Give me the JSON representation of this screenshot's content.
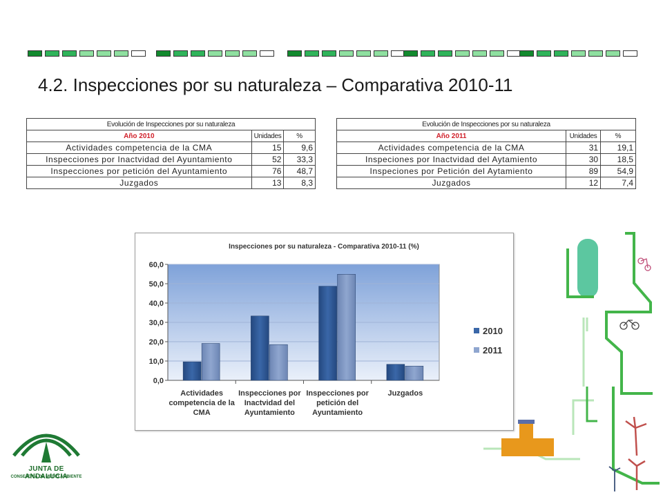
{
  "page": {
    "title": "4.2. Inspecciones por su naturaleza – Comparativa 2010-11"
  },
  "colors": {
    "bar_2010": "#3a67a8",
    "bar_2011": "#8fa6cf",
    "plot_bg_top": "#7fa2d9",
    "plot_bg_bottom": "#eaf0fa",
    "year_header": "#d0202a",
    "deco_dark": "#128a2e",
    "deco_mid": "#2fb45a",
    "deco_light": "#8fe0a0"
  },
  "table_2010": {
    "caption": "Evolución de Inspecciones por su naturaleza",
    "year": "Año 2010",
    "col_units": "Unidades",
    "col_pct": "%",
    "rows": [
      {
        "label": "Actividades competencia de la CMA",
        "units": "15",
        "pct": "9,6"
      },
      {
        "label": "Inspecciones por Inactvidad del Ayuntamiento",
        "units": "52",
        "pct": "33,3"
      },
      {
        "label": "Inspecciones por petición del Ayuntamiento",
        "units": "76",
        "pct": "48,7"
      },
      {
        "label": "Juzgados",
        "units": "13",
        "pct": "8,3"
      }
    ]
  },
  "table_2011": {
    "caption": "Evolución de Inspecciones por su naturaleza",
    "year": "Año 2011",
    "col_units": "Unidades",
    "col_pct": "%",
    "rows": [
      {
        "label": "Actividades competencia de la CMA",
        "units": "31",
        "pct": "19,1"
      },
      {
        "label": "Inspeciones por Inactvidad del Aytamiento",
        "units": "30",
        "pct": "18,5"
      },
      {
        "label": "Inspeciones por Petición del Aytamiento",
        "units": "89",
        "pct": "54,9"
      },
      {
        "label": "Juzgados",
        "units": "12",
        "pct": "7,4"
      }
    ]
  },
  "chart_data": {
    "type": "bar",
    "title": "Inspecciones por su naturaleza - Comparativa 2010-11 (%)",
    "categories": [
      "Actividades competencia de la CMA",
      "Inspecciones por Inactvidad del Ayuntamiento",
      "Inspecciones por petición del Ayuntamiento",
      "Juzgados"
    ],
    "series": [
      {
        "name": "2010",
        "values": [
          9.6,
          33.3,
          48.7,
          8.3
        ]
      },
      {
        "name": "2011",
        "values": [
          19.1,
          18.5,
          54.9,
          7.4
        ]
      }
    ],
    "ylim": [
      0,
      60
    ],
    "yticks": [
      "0,0",
      "10,0",
      "20,0",
      "30,0",
      "40,0",
      "50,0",
      "60,0"
    ],
    "grid": true,
    "legend": "right"
  },
  "logo": {
    "name": "JUNTA DE ANDALUCIA",
    "subtitle": "CONSEJERÍA DE MEDIO AMBIENTE"
  }
}
